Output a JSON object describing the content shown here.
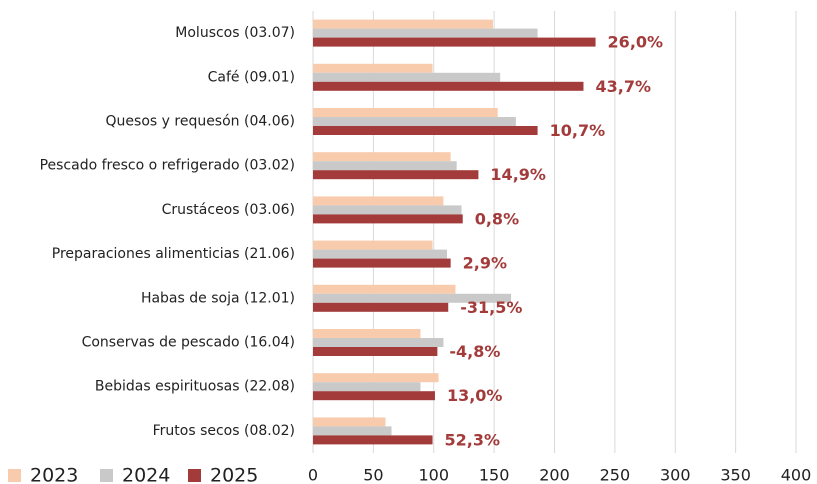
{
  "chart_data": {
    "type": "barh",
    "categories": [
      "Moluscos (03.07)",
      "Café (09.01)",
      "Quesos y requesón (04.06)",
      "Pescado fresco o refrigerado (03.02)",
      "Crustáceos (03.06)",
      "Preparaciones alimenticias (21.06)",
      "Habas de soja (12.01)",
      "Conservas de pescado (16.04)",
      "Bebidas espirituosas (22.08)",
      "Frutos secos (08.02)"
    ],
    "series": [
      {
        "name": "2023",
        "color": "#f8cbad",
        "values": [
          149,
          99,
          153,
          114,
          108,
          99,
          118,
          89,
          104,
          60
        ]
      },
      {
        "name": "2024",
        "color": "#c9c9c9",
        "values": [
          186,
          155,
          168,
          119,
          123,
          111,
          164,
          108,
          89,
          65
        ]
      },
      {
        "name": "2025",
        "color": "#a33b3b",
        "values": [
          234,
          224,
          186,
          137,
          124,
          114,
          112,
          103,
          101,
          99
        ]
      }
    ],
    "annotations": [
      "26,0%",
      "43,7%",
      "10,7%",
      "14,9%",
      "0,8%",
      "2,9%",
      "-31,5%",
      "-4,8%",
      "13,0%",
      "52,3%"
    ],
    "annotation_color": "#a33b3b",
    "xlim": [
      0,
      400
    ],
    "xticks": [
      0,
      50,
      100,
      150,
      200,
      250,
      300,
      350,
      400
    ],
    "grid": true,
    "legend": "bottom-left"
  }
}
